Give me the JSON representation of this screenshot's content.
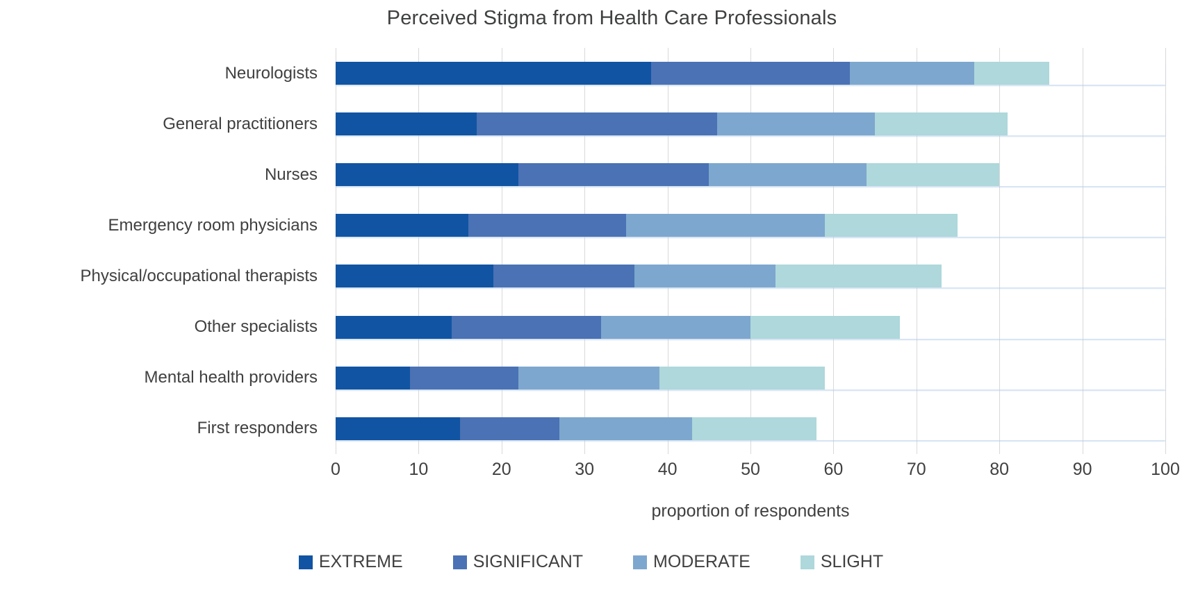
{
  "chart_data": {
    "type": "bar",
    "orientation": "horizontal",
    "stacked": true,
    "title": "Perceived Stigma from Health Care Professionals",
    "categories": [
      "Neurologists",
      "General practitioners",
      "Nurses",
      "Emergency room physicians",
      "Physical/occupational therapists",
      "Other specialists",
      "Mental health providers",
      "First responders"
    ],
    "series": [
      {
        "name": "EXTREME",
        "color": "#1154a3",
        "values": [
          38,
          17,
          22,
          16,
          19,
          14,
          9,
          15
        ]
      },
      {
        "name": "SIGNIFICANT",
        "color": "#4a72b5",
        "values": [
          24,
          29,
          23,
          19,
          17,
          18,
          13,
          12
        ]
      },
      {
        "name": "MODERATE",
        "color": "#7da7ce",
        "values": [
          15,
          19,
          19,
          24,
          17,
          18,
          17,
          16
        ]
      },
      {
        "name": "SLIGHT",
        "color": "#aed8db",
        "values": [
          9,
          16,
          16,
          16,
          20,
          18,
          20,
          15
        ]
      }
    ],
    "bar_totals": [
      86,
      81,
      80,
      75,
      73,
      68,
      59,
      58
    ],
    "xlabel": "proportion of respondents",
    "xlim": [
      0,
      100
    ],
    "xticks": [
      0,
      10,
      20,
      30,
      40,
      50,
      60,
      70,
      80,
      90,
      100
    ],
    "grid": "vertical",
    "gridline_color": "#d9d9d9",
    "legend_position": "bottom",
    "background_color": "#ffffff",
    "text_color": "#404040"
  }
}
